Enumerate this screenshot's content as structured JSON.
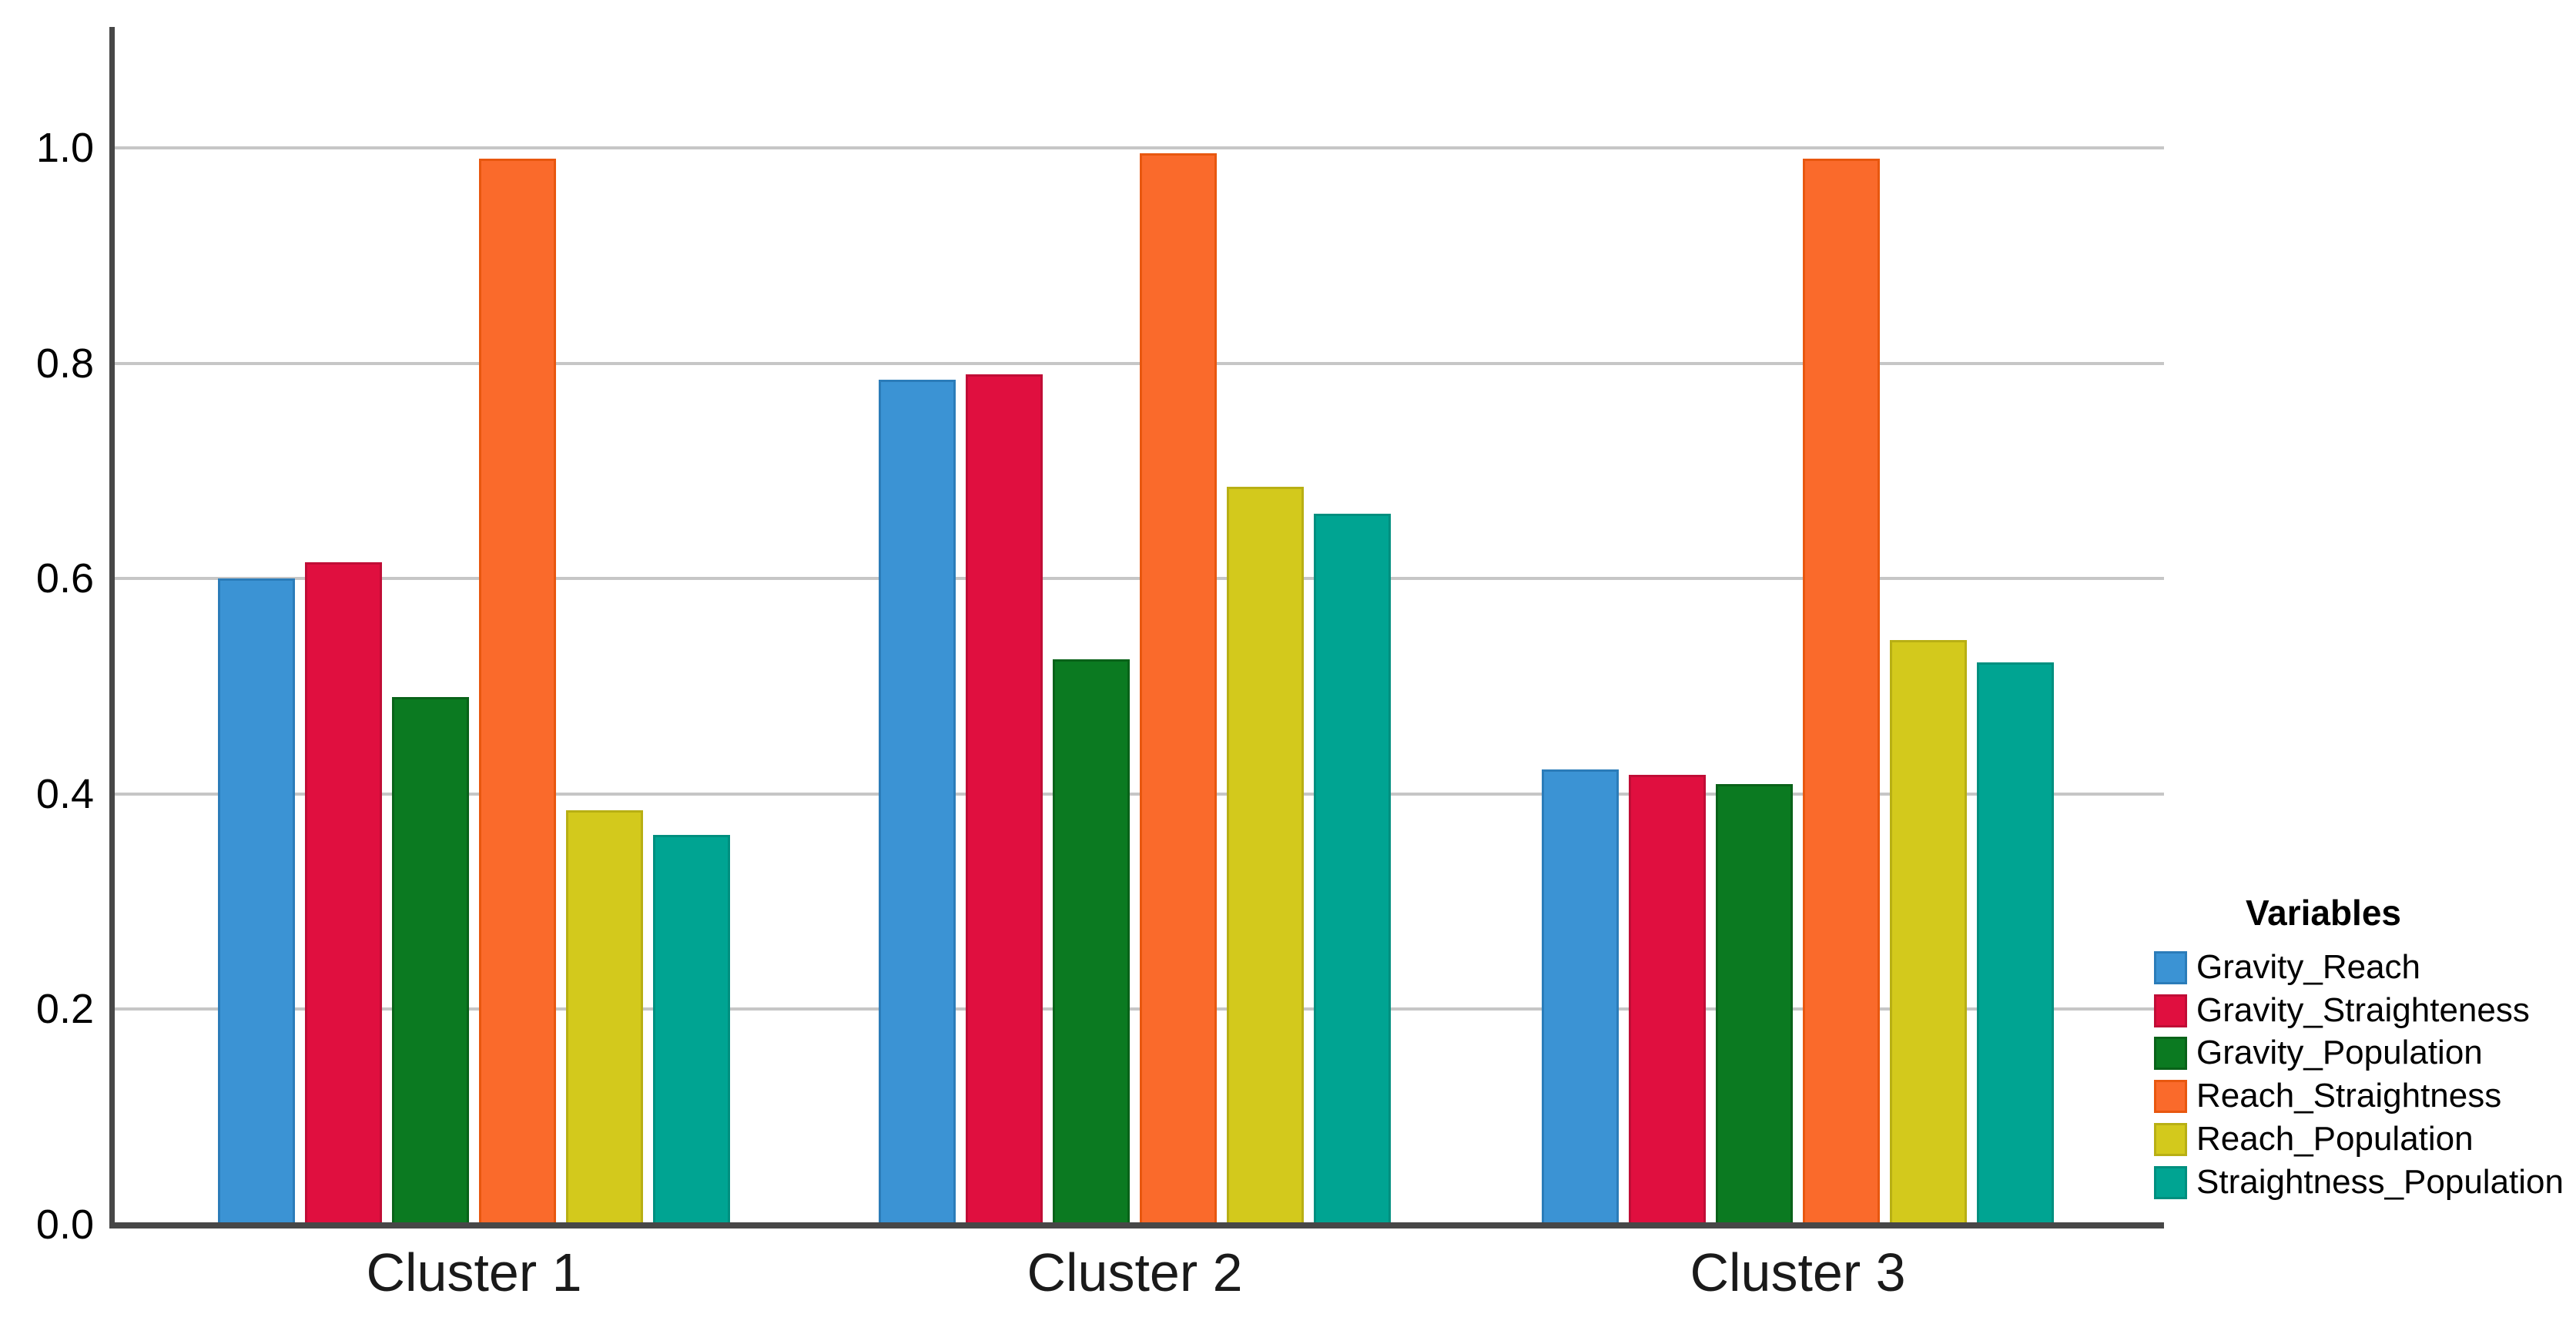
{
  "chart_data": {
    "type": "bar",
    "title": "",
    "categories": [
      "Cluster 1",
      "Cluster 2",
      "Cluster 3"
    ],
    "series": [
      {
        "name": "Gravity_Reach",
        "color": "#3B93D4",
        "border_color": "#2B7CB9",
        "values": [
          0.6,
          0.785,
          0.423
        ]
      },
      {
        "name": "Gravity_Straighteness",
        "color": "#E00F3F",
        "border_color": "#C00D36",
        "values": [
          0.615,
          0.79,
          0.418
        ]
      },
      {
        "name": "Gravity_Population",
        "color": "#0B7A21",
        "border_color": "#096219",
        "values": [
          0.49,
          0.525,
          0.409
        ]
      },
      {
        "name": "Reach_Straightness",
        "color": "#FA6A2B",
        "border_color": "#E8570F",
        "values": [
          0.99,
          0.995,
          0.99
        ]
      },
      {
        "name": "Reach_Population",
        "color": "#D3C91C",
        "border_color": "#B8AF14",
        "values": [
          0.385,
          0.685,
          0.543
        ]
      },
      {
        "name": "Straightness_Population",
        "color": "#00A492",
        "border_color": "#008F7F",
        "values": [
          0.362,
          0.66,
          0.522
        ]
      }
    ],
    "y_ticks": [
      "0.0",
      "0.2",
      "0.4",
      "0.6",
      "0.8",
      "1.0"
    ],
    "ylim": [
      0.0,
      1.12
    ],
    "ylabel": "",
    "xlabel": "",
    "grid": true,
    "legend_title": "Variables",
    "legend_position": "right",
    "colors": {
      "grid": "#c6c6c6",
      "axis": "#474747",
      "background": "#ffffff",
      "text": "#000000"
    }
  }
}
